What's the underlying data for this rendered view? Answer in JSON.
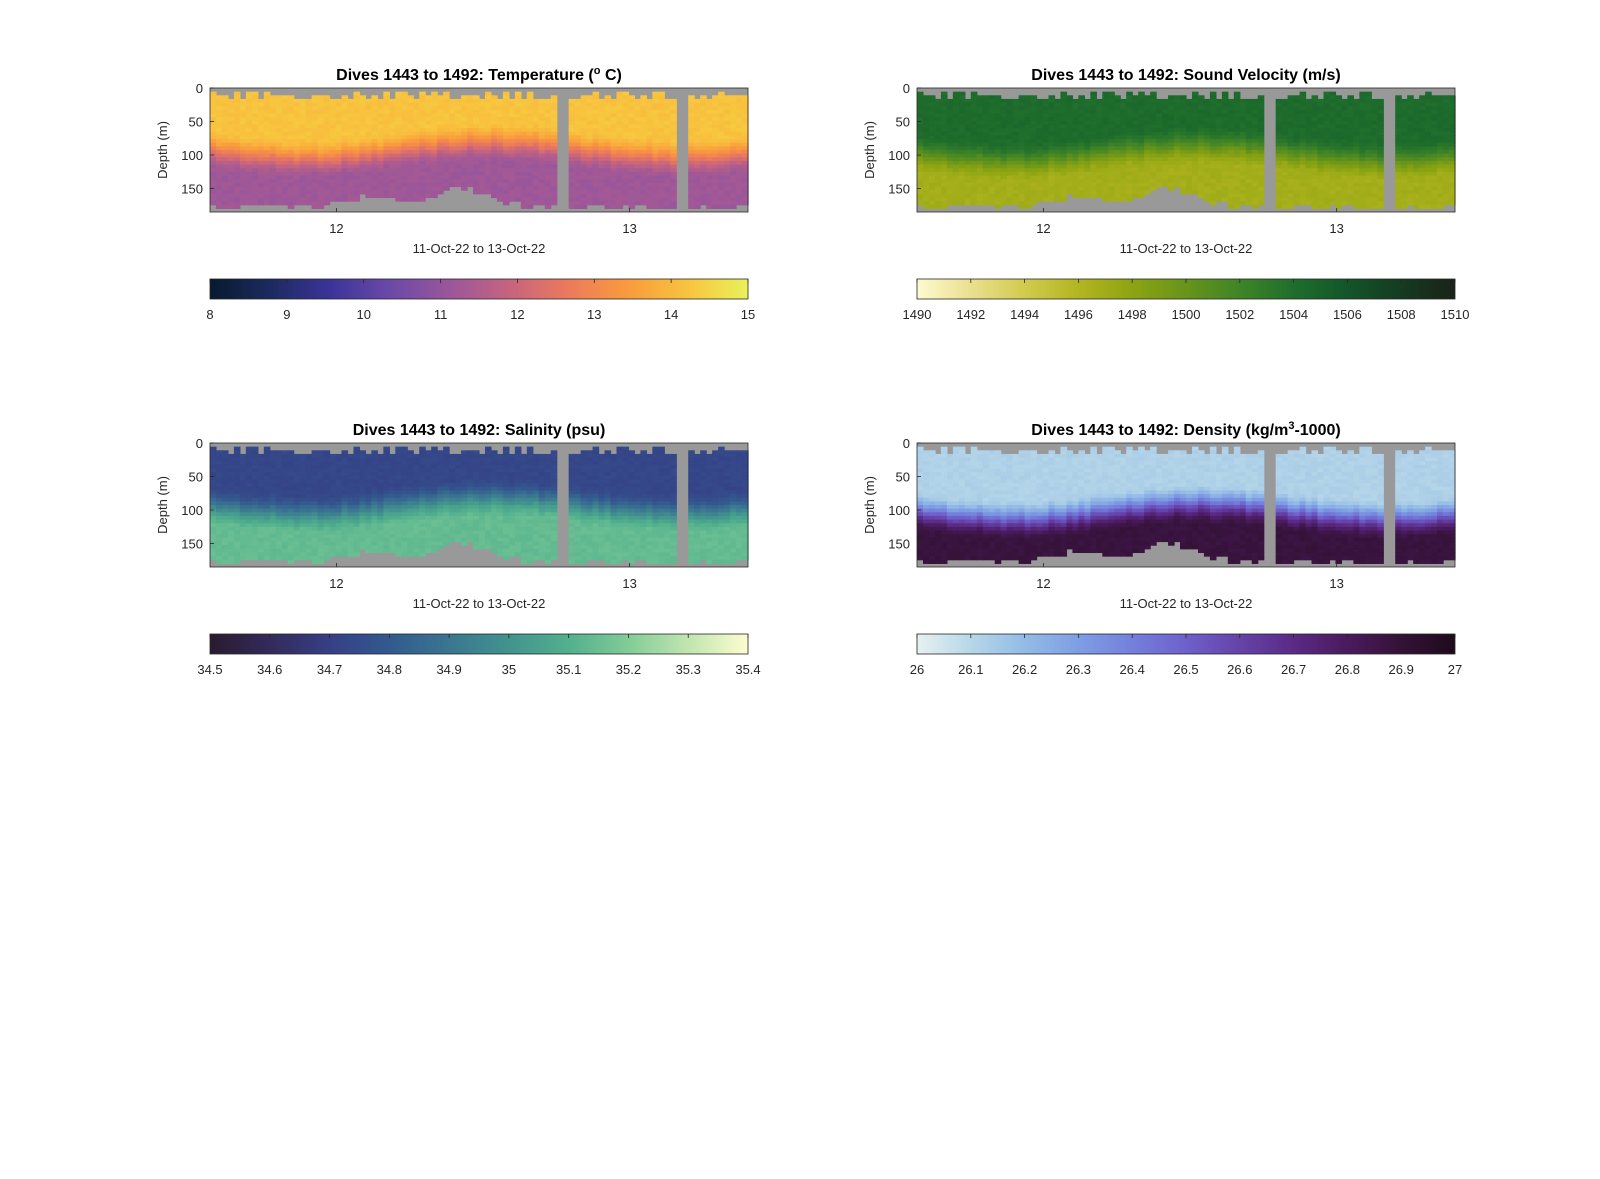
{
  "chart_data": [
    {
      "type": "heatmap",
      "title_prefix": "Dives 1443 to 1492: Temperature (",
      "title_super": "o",
      "title_suffix": " C)",
      "xlabel": "11-Oct-22 to 13-Oct-22",
      "ylabel": "Depth (m)",
      "xticks": [
        "12",
        "13"
      ],
      "yticks": [
        "0",
        "50",
        "100",
        "150"
      ],
      "ylim": [
        0,
        185
      ],
      "colorbar": {
        "ticks": [
          "8",
          "9",
          "10",
          "11",
          "12",
          "13",
          "14",
          "15"
        ],
        "range": [
          8,
          15
        ],
        "colors": [
          "#071a2e",
          "#1c2a5e",
          "#3b3399",
          "#6a49a8",
          "#9a569b",
          "#c6637f",
          "#ec7a5c",
          "#fa9b3d",
          "#f8c43e",
          "#e9f25a"
        ]
      },
      "profile": {
        "surface": 14.2,
        "mixed_depth": 60,
        "bottom": 11.2
      },
      "gaps": [
        0.66,
        0.88
      ]
    },
    {
      "type": "heatmap",
      "title_prefix": "Dives 1443 to 1492: Sound Velocity (m/s)",
      "title_super": "",
      "title_suffix": "",
      "xlabel": "11-Oct-22 to 13-Oct-22",
      "ylabel": "Depth (m)",
      "xticks": [
        "12",
        "13"
      ],
      "yticks": [
        "0",
        "50",
        "100",
        "150"
      ],
      "ylim": [
        0,
        185
      ],
      "colorbar": {
        "ticks": [
          "1490",
          "1492",
          "1494",
          "1496",
          "1498",
          "1500",
          "1502",
          "1504",
          "1506",
          "1508",
          "1510"
        ],
        "range": [
          1490,
          1510
        ],
        "colors": [
          "#fdfbd0",
          "#eadf8f",
          "#d1cb4e",
          "#b3b520",
          "#8da412",
          "#68941a",
          "#3f8426",
          "#1f6e2c",
          "#14552a",
          "#143b20",
          "#1a2318"
        ]
      },
      "profile": {
        "surface": 1504.2,
        "mixed_depth": 65,
        "bottom": 1496.8
      },
      "gaps": [
        0.66,
        0.88
      ]
    },
    {
      "type": "heatmap",
      "title_prefix": "Dives 1443 to 1492: Salinity (psu)",
      "title_super": "",
      "title_suffix": "",
      "xlabel": "11-Oct-22 to 13-Oct-22",
      "ylabel": "Depth (m)",
      "xticks": [
        "12",
        "13"
      ],
      "yticks": [
        "0",
        "50",
        "100",
        "150"
      ],
      "ylim": [
        0,
        185
      ],
      "colorbar": {
        "ticks": [
          "34.5",
          "34.6",
          "34.7",
          "34.8",
          "34.9",
          "35",
          "35.1",
          "35.2",
          "35.3",
          "35.4"
        ],
        "range": [
          34.5,
          35.4
        ],
        "colors": [
          "#281b2f",
          "#332a5a",
          "#363f86",
          "#33598f",
          "#3a7690",
          "#42938e",
          "#51b08d",
          "#82cc97",
          "#c1e5b0",
          "#fdfdcf"
        ]
      },
      "profile": {
        "surface": 34.73,
        "mixed_depth": 60,
        "bottom": 35.14
      },
      "gaps": [
        0.66,
        0.88
      ]
    },
    {
      "type": "heatmap",
      "title_prefix": "Dives 1443 to 1492: Density (kg/m",
      "title_super": "3",
      "title_suffix": "-1000)",
      "xlabel": "11-Oct-22 to 13-Oct-22",
      "ylabel": "Depth (m)",
      "xticks": [
        "12",
        "13"
      ],
      "yticks": [
        "0",
        "50",
        "100",
        "150"
      ],
      "ylim": [
        0,
        185
      ],
      "colorbar": {
        "ticks": [
          "26",
          "26.1",
          "26.2",
          "26.3",
          "26.4",
          "26.5",
          "26.6",
          "26.7",
          "26.8",
          "26.9",
          "27"
        ],
        "range": [
          26,
          27
        ],
        "colors": [
          "#e6f1f1",
          "#b7d7e8",
          "#93bbe6",
          "#7e9ee4",
          "#7480dc",
          "#6e60cb",
          "#6543a8",
          "#5a2a85",
          "#4a1a5e",
          "#341236",
          "#1e0a1c"
        ]
      },
      "profile": {
        "surface": 26.12,
        "mixed_depth": 70,
        "bottom": 26.88
      },
      "gaps": [
        0.66,
        0.88
      ]
    }
  ]
}
